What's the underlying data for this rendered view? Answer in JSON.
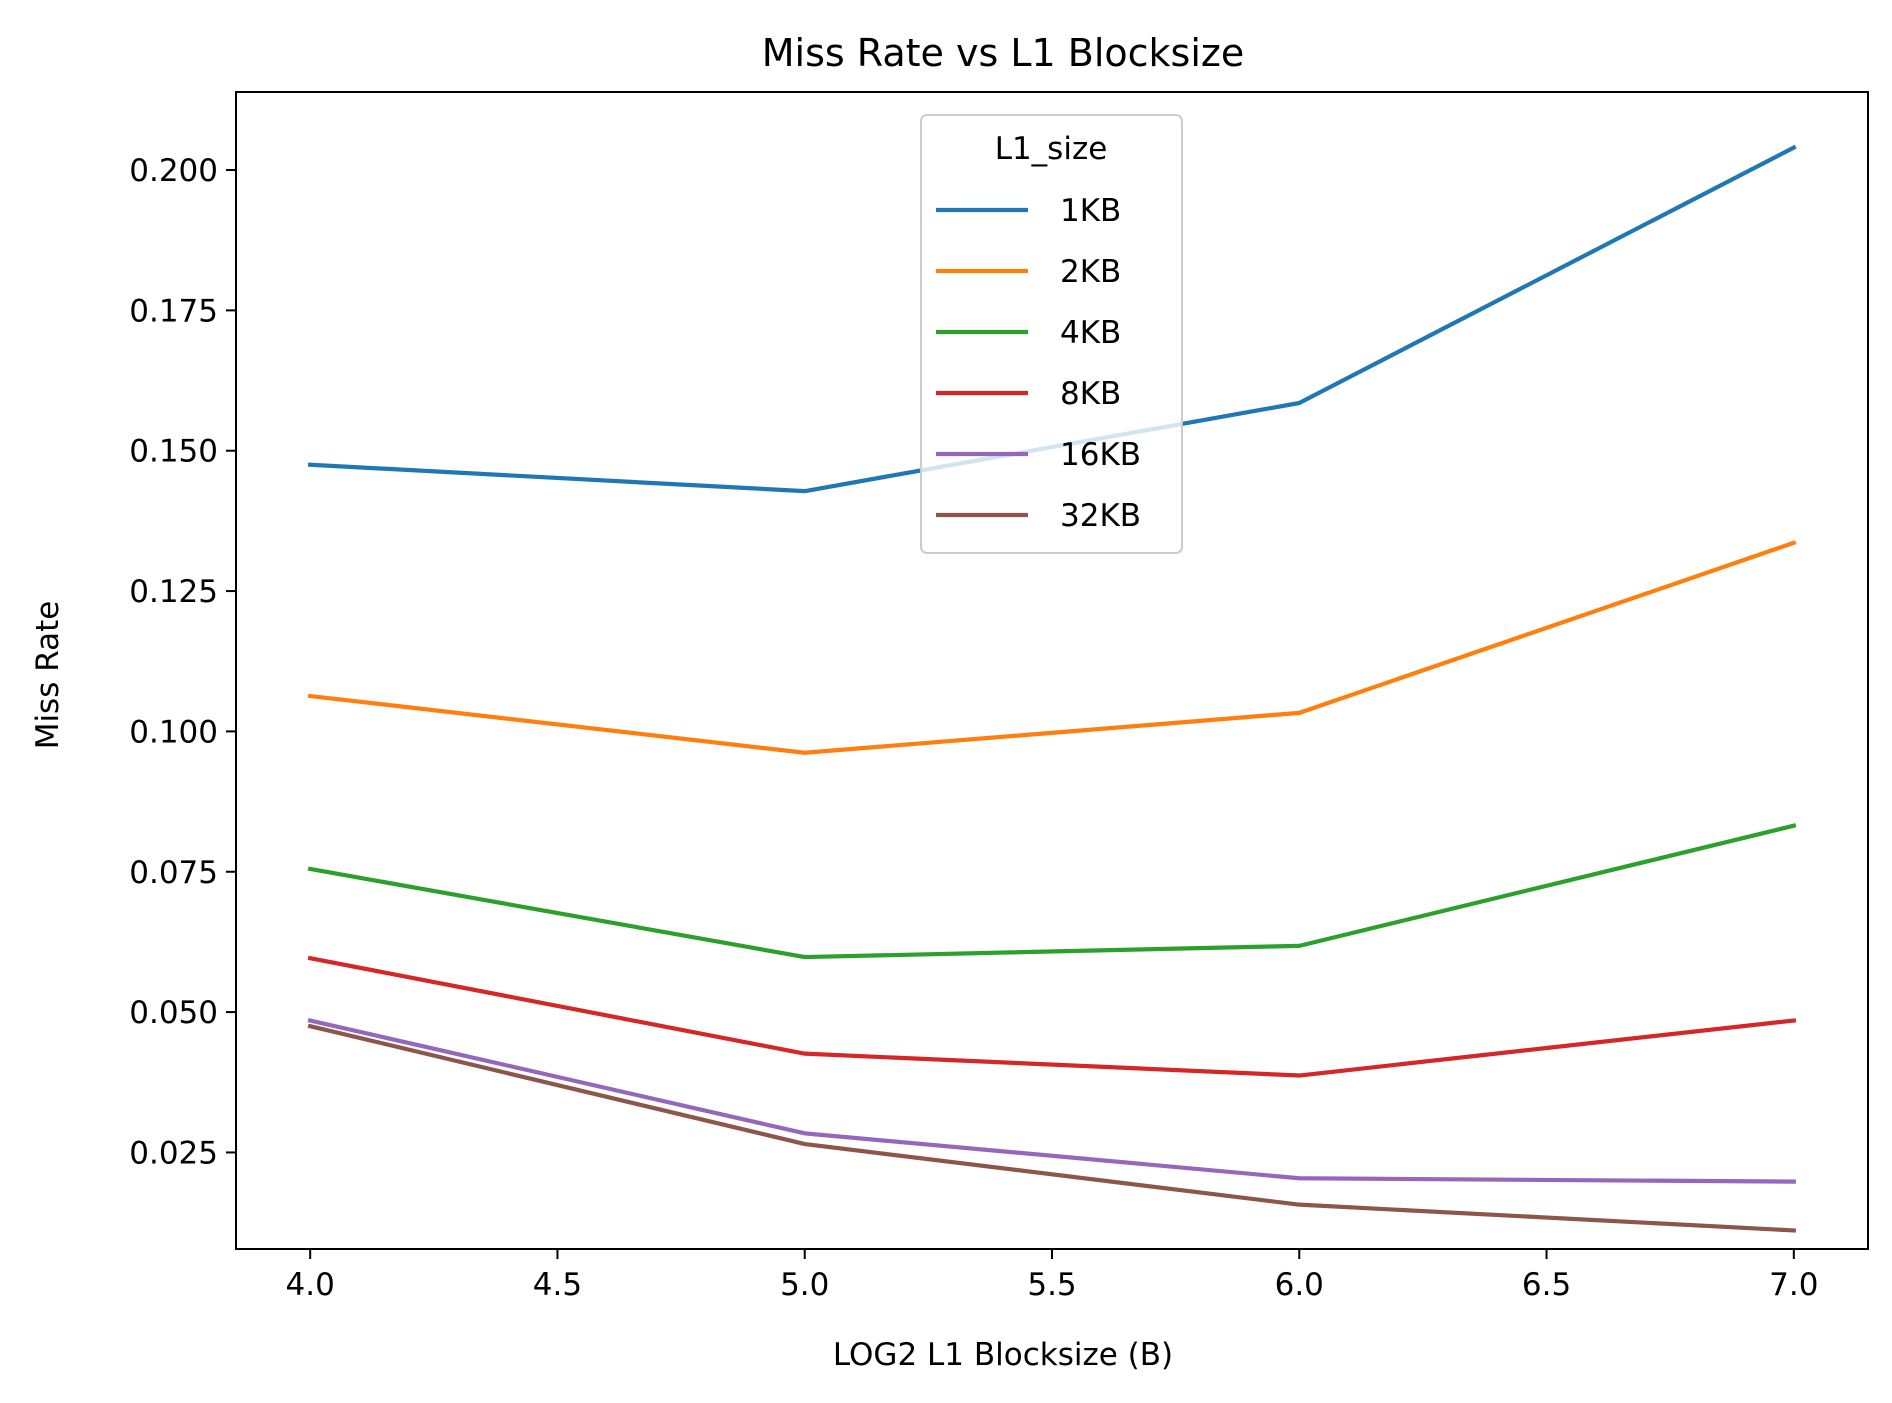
{
  "chart_data": {
    "type": "line",
    "title": "Miss Rate vs L1 Blocksize",
    "xlabel": "LOG2 L1 Blocksize (B)",
    "ylabel": "Miss Rate",
    "x": [
      4.0,
      5.0,
      6.0,
      7.0
    ],
    "xlim": [
      3.85,
      7.15
    ],
    "ylim": [
      0.0078,
      0.2139
    ],
    "xticks": [
      "4.0",
      "4.5",
      "5.0",
      "5.5",
      "6.0",
      "6.5",
      "7.0"
    ],
    "yticks": [
      "0.025",
      "0.050",
      "0.075",
      "0.100",
      "0.125",
      "0.150",
      "0.175",
      "0.200"
    ],
    "grid": false,
    "legend": {
      "title": "L1_size",
      "position": "upper center"
    },
    "series": [
      {
        "name": "1KB",
        "color": "#1f77b4",
        "values": [
          0.1475,
          0.1428,
          0.1585,
          0.204
        ]
      },
      {
        "name": "2KB",
        "color": "#ff7f0e",
        "values": [
          0.1063,
          0.0962,
          0.1033,
          0.1336
        ]
      },
      {
        "name": "4KB",
        "color": "#2ca02c",
        "values": [
          0.0755,
          0.0598,
          0.0618,
          0.0832
        ]
      },
      {
        "name": "8KB",
        "color": "#d62728",
        "values": [
          0.0596,
          0.0426,
          0.0387,
          0.0485
        ]
      },
      {
        "name": "16KB",
        "color": "#9467bd",
        "values": [
          0.0485,
          0.0284,
          0.0204,
          0.0198
        ]
      },
      {
        "name": "32KB",
        "color": "#8c564b",
        "values": [
          0.0475,
          0.0265,
          0.0157,
          0.0111
        ]
      }
    ]
  }
}
